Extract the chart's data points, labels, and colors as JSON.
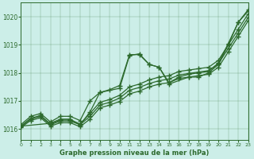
{
  "title": "Graphe pression niveau de la mer (hPa)",
  "bg_color": "#cceee8",
  "line_color": "#2d6a2d",
  "xlim": [
    0,
    23
  ],
  "ylim": [
    1015.6,
    1020.5
  ],
  "yticks": [
    1016,
    1017,
    1018,
    1019,
    1020
  ],
  "xticks": [
    0,
    1,
    2,
    3,
    4,
    5,
    6,
    7,
    8,
    9,
    10,
    11,
    12,
    13,
    14,
    15,
    16,
    17,
    18,
    19,
    20,
    21,
    22,
    23
  ],
  "series": [
    {
      "x": [
        0,
        1,
        2,
        3,
        4,
        5,
        6,
        7,
        8,
        9,
        10,
        11,
        12,
        13,
        14,
        15,
        16,
        17,
        18,
        19,
        20,
        21,
        22,
        23
      ],
      "y": [
        1016.15,
        1016.45,
        1016.55,
        1016.25,
        1016.45,
        1016.45,
        1016.3,
        1017.0,
        1017.3,
        1017.4,
        1017.55,
        1018.65,
        1018.65,
        1018.3,
        1018.2,
        1017.65,
        1017.85,
        1017.95,
        1018.0,
        1018.05,
        1018.35,
        1019.05,
        1019.8,
        1020.25
      ]
    },
    {
      "x": [
        0,
        3,
        4,
        5,
        6,
        7,
        8,
        10,
        11,
        12,
        13,
        14,
        15,
        17,
        18,
        19,
        20,
        21,
        22,
        23
      ],
      "y": [
        1016.1,
        1016.2,
        1016.35,
        1016.35,
        1016.15,
        1016.6,
        1017.3,
        1017.45,
        1018.62,
        1018.68,
        1018.3,
        1018.2,
        1017.6,
        1017.85,
        1017.85,
        1018.0,
        1018.3,
        1019.0,
        1019.8,
        1020.2
      ]
    },
    {
      "x": [
        0,
        1,
        2,
        3,
        4,
        5,
        6,
        7,
        8,
        9,
        10,
        11,
        12,
        13,
        14,
        15,
        16,
        17,
        18,
        19,
        20,
        21,
        22,
        23
      ],
      "y": [
        1016.1,
        1016.38,
        1016.48,
        1016.18,
        1016.32,
        1016.32,
        1016.18,
        1016.55,
        1016.95,
        1017.05,
        1017.2,
        1017.5,
        1017.6,
        1017.75,
        1017.85,
        1017.9,
        1018.05,
        1018.1,
        1018.15,
        1018.2,
        1018.45,
        1019.0,
        1019.55,
        1020.1
      ]
    },
    {
      "x": [
        0,
        1,
        2,
        3,
        4,
        5,
        6,
        7,
        8,
        9,
        10,
        11,
        12,
        13,
        14,
        15,
        16,
        17,
        18,
        19,
        20,
        21,
        22,
        23
      ],
      "y": [
        1016.08,
        1016.35,
        1016.45,
        1016.15,
        1016.28,
        1016.28,
        1016.15,
        1016.45,
        1016.85,
        1016.95,
        1017.1,
        1017.38,
        1017.48,
        1017.62,
        1017.72,
        1017.78,
        1017.92,
        1017.98,
        1018.03,
        1018.08,
        1018.33,
        1018.87,
        1019.42,
        1019.97
      ]
    },
    {
      "x": [
        0,
        1,
        2,
        3,
        4,
        5,
        6,
        7,
        8,
        9,
        10,
        11,
        12,
        13,
        14,
        15,
        16,
        17,
        18,
        19,
        20,
        21,
        22,
        23
      ],
      "y": [
        1016.05,
        1016.3,
        1016.4,
        1016.1,
        1016.22,
        1016.22,
        1016.08,
        1016.35,
        1016.75,
        1016.85,
        1016.98,
        1017.25,
        1017.35,
        1017.5,
        1017.6,
        1017.65,
        1017.8,
        1017.85,
        1017.9,
        1017.95,
        1018.2,
        1018.75,
        1019.3,
        1019.85
      ]
    }
  ]
}
